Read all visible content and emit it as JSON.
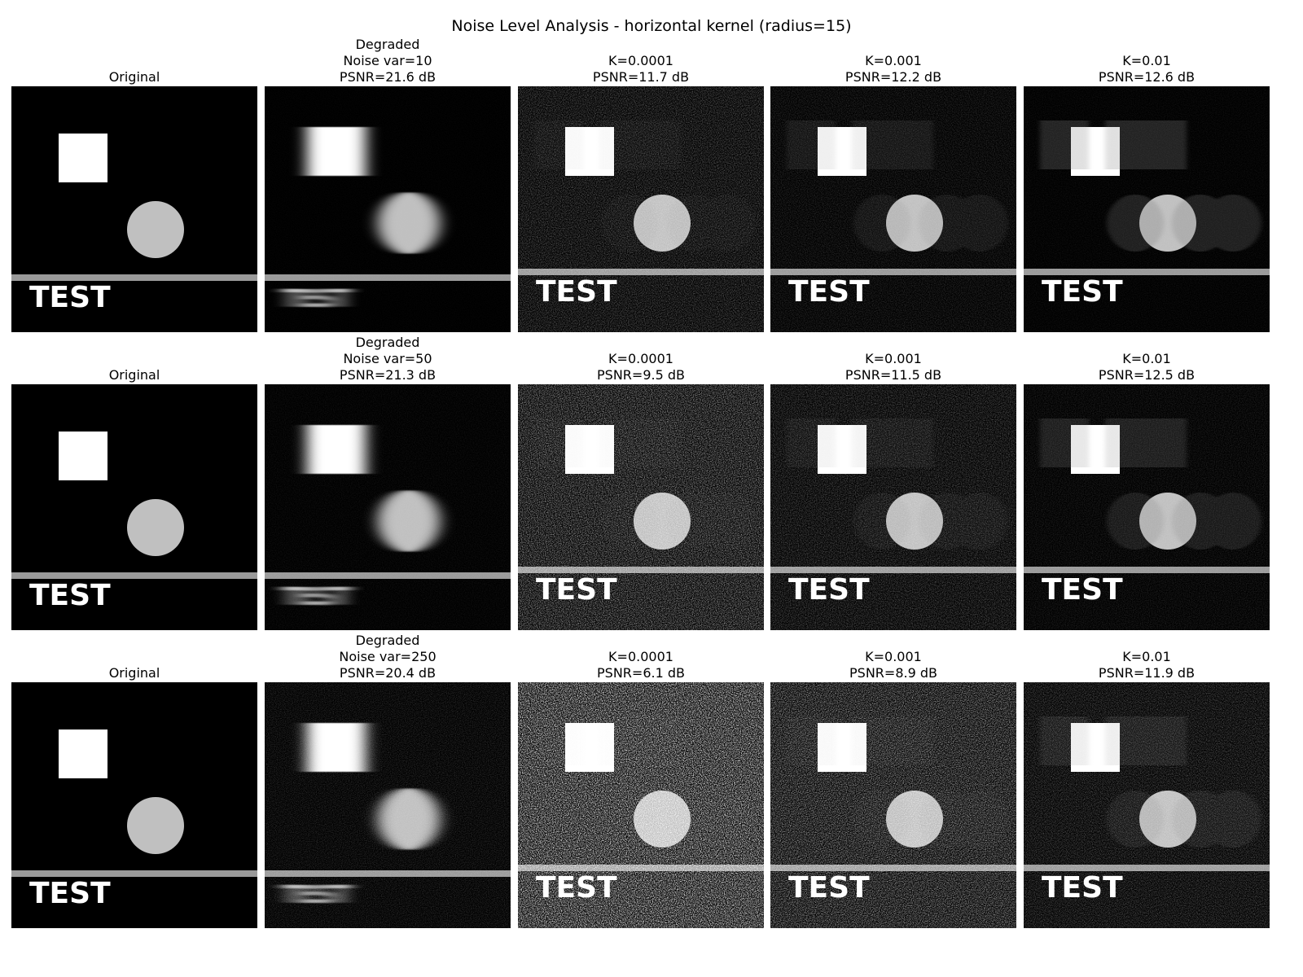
{
  "figure": {
    "title": "Noise Level Analysis - horizontal kernel (radius=15)"
  },
  "rows": [
    {
      "cells": [
        {
          "caption": [
            "Original"
          ],
          "kind": "original",
          "noise": 0,
          "ring": 0,
          "blur": 0
        },
        {
          "caption": [
            "Degraded",
            "Noise var=10",
            "PSNR=21.6 dB"
          ],
          "kind": "degraded",
          "noise": 0.02,
          "ring": 0,
          "blur": 1
        },
        {
          "caption": [
            "K=0.0001",
            "PSNR=11.7 dB"
          ],
          "kind": "restored",
          "noise": 0.32,
          "ring": 0.15,
          "blur": 0
        },
        {
          "caption": [
            "K=0.001",
            "PSNR=12.2 dB"
          ],
          "kind": "restored",
          "noise": 0.16,
          "ring": 0.35,
          "blur": 0
        },
        {
          "caption": [
            "K=0.01",
            "PSNR=12.6 dB"
          ],
          "kind": "restored",
          "noise": 0.06,
          "ring": 0.7,
          "blur": 0
        }
      ]
    },
    {
      "cells": [
        {
          "caption": [
            "Original"
          ],
          "kind": "original",
          "noise": 0,
          "ring": 0,
          "blur": 0
        },
        {
          "caption": [
            "Degraded",
            "Noise var=50",
            "PSNR=21.3 dB"
          ],
          "kind": "degraded",
          "noise": 0.06,
          "ring": 0,
          "blur": 1
        },
        {
          "caption": [
            "K=0.0001",
            "PSNR=9.5 dB"
          ],
          "kind": "restored",
          "noise": 0.55,
          "ring": 0.1,
          "blur": 0
        },
        {
          "caption": [
            "K=0.001",
            "PSNR=11.5 dB"
          ],
          "kind": "restored",
          "noise": 0.3,
          "ring": 0.25,
          "blur": 0
        },
        {
          "caption": [
            "K=0.01",
            "PSNR=12.5 dB"
          ],
          "kind": "restored",
          "noise": 0.12,
          "ring": 0.55,
          "blur": 0
        }
      ]
    },
    {
      "cells": [
        {
          "caption": [
            "Original"
          ],
          "kind": "original",
          "noise": 0,
          "ring": 0,
          "blur": 0
        },
        {
          "caption": [
            "Degraded",
            "Noise var=250",
            "PSNR=20.4 dB"
          ],
          "kind": "degraded",
          "noise": 0.16,
          "ring": 0,
          "blur": 1
        },
        {
          "caption": [
            "K=0.0001",
            "PSNR=6.1 dB"
          ],
          "kind": "restored",
          "noise": 0.95,
          "ring": 0.05,
          "blur": 0
        },
        {
          "caption": [
            "K=0.001",
            "PSNR=8.9 dB"
          ],
          "kind": "restored",
          "noise": 0.6,
          "ring": 0.15,
          "blur": 0
        },
        {
          "caption": [
            "K=0.01",
            "PSNR=11.9 dB"
          ],
          "kind": "restored",
          "noise": 0.3,
          "ring": 0.4,
          "blur": 0
        }
      ]
    }
  ],
  "scene_text": "TEST",
  "colors": {
    "background": "#000000",
    "square": "#ffffff",
    "circle": "#c0c0c0",
    "bar": "#9a9a9a",
    "text": "#ffffff"
  }
}
